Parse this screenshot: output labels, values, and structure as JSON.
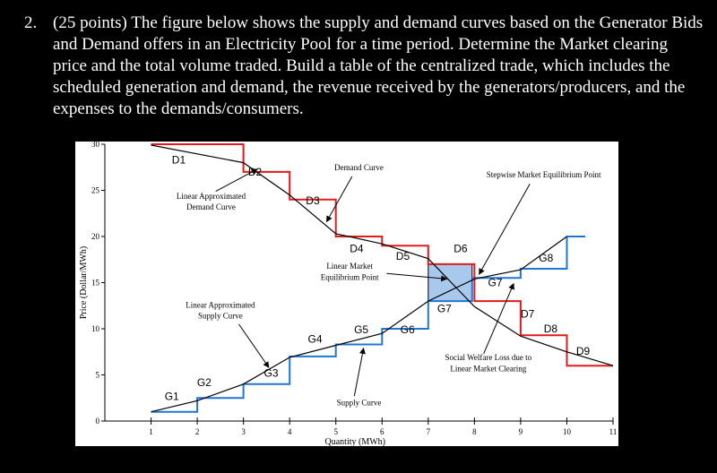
{
  "question": {
    "number": "2.",
    "text": "(25 points) The figure below shows the supply and demand curves based on the Generator Bids and Demand offers in an Electricity Pool for a time period. Determine the Market clearing price and the total volume traded. Build a table of the centralized trade, which includes the scheduled generation and demand, the revenue received by the generators/producers, and the expenses to the demands/consumers."
  },
  "chart_data": {
    "type": "line",
    "xlabel": "Quantity (MWh)",
    "ylabel": "Price (Dollar/MWh)",
    "xlim": [
      0,
      11
    ],
    "ylim": [
      0,
      30
    ],
    "xticks": [
      "1",
      "2",
      "3",
      "4",
      "5",
      "6",
      "7",
      "8",
      "9",
      "10",
      "11"
    ],
    "yticks": [
      "0",
      "5",
      "10",
      "15",
      "20",
      "25",
      "30"
    ],
    "colors": {
      "supply_step": "#1f77d4",
      "demand_step": "#e31a1c",
      "linear": "#000000",
      "welfare_loss": "#a9c9ec"
    },
    "series": [
      {
        "name": "Supply Curve",
        "kind": "step",
        "x": [
          1,
          2,
          2,
          3,
          3,
          4,
          4,
          5,
          5,
          6,
          6,
          7,
          7,
          7.95,
          7.95,
          9,
          9,
          10,
          10,
          10.4
        ],
        "y": [
          1,
          1,
          2.5,
          2.5,
          4,
          4,
          7,
          7,
          8.3,
          8.3,
          10,
          10,
          13,
          13,
          15.5,
          15.5,
          16.5,
          16.5,
          20,
          20
        ]
      },
      {
        "name": "Demand Curve",
        "kind": "step",
        "x": [
          1,
          3,
          3,
          4,
          4,
          5,
          5,
          6,
          6,
          7,
          7,
          8,
          8,
          9,
          9,
          10,
          10,
          11
        ],
        "y": [
          30,
          30,
          27,
          27,
          24,
          24,
          20,
          20,
          19,
          19,
          17,
          17,
          13,
          13,
          9.3,
          9.3,
          6,
          6
        ]
      },
      {
        "name": "Linear Approximated Demand Curve",
        "kind": "linear",
        "x": [
          1,
          3,
          4,
          5,
          6,
          7,
          8,
          9,
          10,
          11
        ],
        "y": [
          29.9,
          28,
          24.5,
          20.3,
          19.2,
          17.6,
          12.4,
          9.2,
          7.5,
          6
        ]
      },
      {
        "name": "Linear Approximated Supply Curve",
        "kind": "linear",
        "x": [
          1,
          2,
          3,
          4,
          5,
          6,
          7,
          8,
          9,
          10
        ],
        "y": [
          1,
          2.2,
          4,
          6.9,
          8.2,
          9.5,
          13,
          15.4,
          16.4,
          20
        ]
      }
    ],
    "welfare_loss_region": {
      "x": [
        7,
        7.95
      ],
      "y": [
        13,
        17
      ]
    },
    "step_labels": [
      {
        "text": "D1",
        "x": 1.6,
        "y": 27.9,
        "font": "sans"
      },
      {
        "text": "D2",
        "x": 3.25,
        "y": 26.6,
        "font": "sans"
      },
      {
        "text": "D3",
        "x": 4.5,
        "y": 23.5,
        "font": "sans"
      },
      {
        "text": "D4",
        "x": 5.45,
        "y": 18.3,
        "font": "sans"
      },
      {
        "text": "D5",
        "x": 6.45,
        "y": 17.5,
        "font": "sans"
      },
      {
        "text": "D6",
        "x": 7.7,
        "y": 18.3,
        "font": "sans"
      },
      {
        "text": "D7",
        "x": 9.15,
        "y": 11.2,
        "font": "sans"
      },
      {
        "text": "D8",
        "x": 9.65,
        "y": 9.6,
        "font": "sans"
      },
      {
        "text": "D9",
        "x": 10.35,
        "y": 7.2,
        "font": "sans"
      },
      {
        "text": "G1",
        "x": 1.45,
        "y": 2.3,
        "font": "sans"
      },
      {
        "text": "G2",
        "x": 2.15,
        "y": 3.8,
        "font": "sans"
      },
      {
        "text": "G3",
        "x": 3.6,
        "y": 4.8,
        "font": "sans"
      },
      {
        "text": "G4",
        "x": 4.55,
        "y": 8.5,
        "font": "sans"
      },
      {
        "text": "G5",
        "x": 5.55,
        "y": 9.5,
        "font": "sans"
      },
      {
        "text": "G6",
        "x": 6.55,
        "y": 9.5,
        "font": "sans"
      },
      {
        "text": "G7",
        "x": 7.35,
        "y": 11.8,
        "font": "sans"
      },
      {
        "text": "G7",
        "x": 8.45,
        "y": 14.6,
        "font": "sans"
      },
      {
        "text": "G8",
        "x": 9.55,
        "y": 17.3,
        "font": "sans"
      }
    ],
    "annotations": [
      {
        "text": "Demand Curve",
        "x": 5.5,
        "y": 27.2,
        "font": "serif"
      },
      {
        "text": "Stepwise Market Equilibrium Point",
        "x": 9.5,
        "y": 26.4,
        "font": "serif"
      },
      {
        "text": "Linear Approximated",
        "x": 2.3,
        "y": 24.1,
        "font": "serif"
      },
      {
        "text": "Demand Curve",
        "x": 2.3,
        "y": 22.9,
        "font": "serif"
      },
      {
        "text": "Linear Market",
        "x": 5.3,
        "y": 16.5,
        "font": "serif"
      },
      {
        "text": "Equilibrium Point",
        "x": 5.3,
        "y": 15.3,
        "font": "serif"
      },
      {
        "text": "Linear Approximated",
        "x": 2.5,
        "y": 12.3,
        "font": "serif"
      },
      {
        "text": "Supply Curve",
        "x": 2.5,
        "y": 11.1,
        "font": "serif"
      },
      {
        "text": "Social Welfare Loss due to",
        "x": 8.3,
        "y": 6.6,
        "font": "serif"
      },
      {
        "text": "Linear Market Clearing",
        "x": 8.3,
        "y": 5.4,
        "font": "serif"
      },
      {
        "text": "Supply Curve",
        "x": 5.5,
        "y": 1.7,
        "font": "serif"
      }
    ],
    "arrows": [
      {
        "x1": 2.4,
        "y1": 24.9,
        "x2": 3.3,
        "y2": 27.3
      },
      {
        "x1": 5.35,
        "y1": 26.5,
        "x2": 4.8,
        "y2": 21.6
      },
      {
        "x1": 9.2,
        "y1": 25.7,
        "x2": 8.1,
        "y2": 15.9
      },
      {
        "x1": 6.1,
        "y1": 16.0,
        "x2": 7.4,
        "y2": 15.4
      },
      {
        "x1": 2.9,
        "y1": 10.5,
        "x2": 3.55,
        "y2": 5.8
      },
      {
        "x1": 8.2,
        "y1": 7.3,
        "x2": 8.85,
        "y2": 14.9
      },
      {
        "x1": 5.4,
        "y1": 2.7,
        "x2": 5.6,
        "y2": 7.9
      }
    ]
  }
}
